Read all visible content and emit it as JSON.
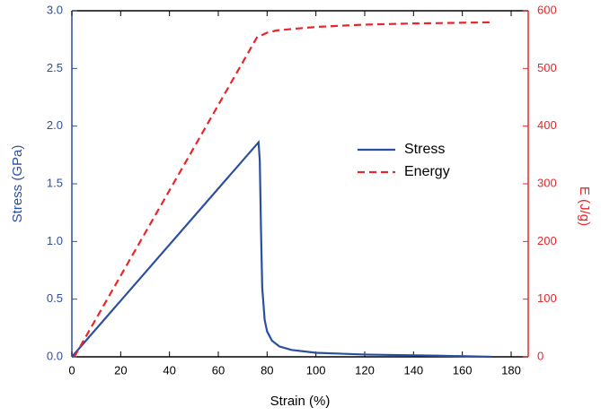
{
  "chart_data": {
    "type": "line",
    "xlabel": "Strain (%)",
    "ylabel": "Stress (GPa)",
    "y2label": "E (J/g)",
    "xlim": [
      0,
      187
    ],
    "xticks": [
      0,
      20,
      40,
      60,
      80,
      100,
      120,
      140,
      160,
      180
    ],
    "ylim": [
      0,
      3.0
    ],
    "yticks": [
      {
        "value": 0,
        "label": "0.0"
      },
      0.5,
      {
        "value": 1,
        "label": "1.0"
      },
      1.5,
      {
        "value": 2,
        "label": "2.0"
      },
      2.5,
      {
        "value": 3,
        "label": "3.0"
      }
    ],
    "y2lim": [
      0,
      600
    ],
    "y2ticks": [
      0,
      100,
      200,
      300,
      400,
      500,
      600
    ],
    "axis_colors": {
      "y": "#2b4fa0",
      "y2": "#e8262b"
    },
    "series": [
      {
        "name": "Stress",
        "color": "#2b4fa0",
        "dash": false,
        "x": [
          0,
          76.5,
          77,
          77.5,
          78,
          79,
          80,
          82,
          85,
          90,
          100,
          120,
          150,
          172
        ],
        "values": [
          0,
          1.86,
          1.7,
          1.1,
          0.6,
          0.32,
          0.22,
          0.14,
          0.09,
          0.06,
          0.035,
          0.02,
          0.01,
          0.0
        ]
      },
      {
        "name": "Energy",
        "color": "#e8262b",
        "dash": true,
        "axis": "y2",
        "x": [
          1,
          76,
          78,
          80,
          84,
          100,
          120,
          140,
          172
        ],
        "values": [
          0,
          555,
          558,
          562,
          566,
          572,
          576,
          578,
          580
        ]
      }
    ]
  }
}
